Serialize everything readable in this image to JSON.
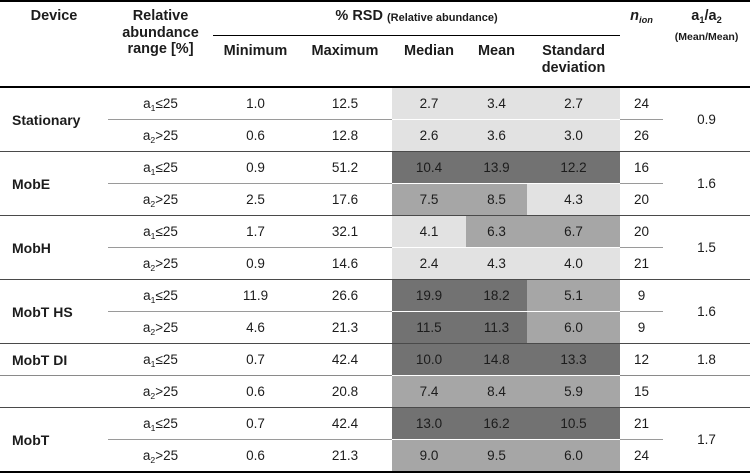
{
  "colors": {
    "shade_light": "#e2e2e2",
    "shade_mid": "#a6a6a6",
    "shade_dark": "#727272",
    "rule_heavy": "#000000",
    "rule_group": "#4a4a4a",
    "rule_inner": "#9a9a9a"
  },
  "header": {
    "device": "Device",
    "range": "Relative\nabundance\nrange [%]",
    "rsd_main": "% RSD",
    "rsd_note": "(Relative abundance)",
    "sub_min": "Minimum",
    "sub_max": "Maximum",
    "sub_median": "Median",
    "sub_mean": "Mean",
    "sub_sd": "Standard\ndeviation",
    "nion": {
      "base": "n",
      "sub": "ion"
    },
    "ratio": {
      "base1": "a",
      "sub1": "1",
      "slash": "/",
      "base2": "a",
      "sub2": "2",
      "note": "(Mean/Mean)"
    }
  },
  "table": {
    "rows": [
      {
        "device": "Stationary",
        "range": {
          "base": "a",
          "sub": "1",
          "rest": "≤25"
        },
        "min": "1.0",
        "max": "12.5",
        "median": "2.7",
        "mean": "3.4",
        "sd": "2.7",
        "n": "24",
        "ratio": "0.9",
        "shades": [
          "light",
          "light",
          "light"
        ]
      },
      {
        "device": "",
        "range": {
          "base": "a",
          "sub": "2",
          "rest": ">25"
        },
        "min": "0.6",
        "max": "12.8",
        "median": "2.6",
        "mean": "3.6",
        "sd": "3.0",
        "n": "26",
        "ratio": "",
        "shades": [
          "light",
          "light",
          "light"
        ]
      },
      {
        "device": "MobE",
        "range": {
          "base": "a",
          "sub": "1",
          "rest": "≤25"
        },
        "min": "0.9",
        "max": "51.2",
        "median": "10.4",
        "mean": "13.9",
        "sd": "12.2",
        "n": "16",
        "ratio": "1.6",
        "shades": [
          "dark",
          "dark",
          "dark"
        ]
      },
      {
        "device": "",
        "range": {
          "base": "a",
          "sub": "2",
          "rest": ">25"
        },
        "min": "2.5",
        "max": "17.6",
        "median": "7.5",
        "mean": "8.5",
        "sd": "4.3",
        "n": "20",
        "ratio": "",
        "shades": [
          "mid",
          "mid",
          "light"
        ]
      },
      {
        "device": "MobH",
        "range": {
          "base": "a",
          "sub": "1",
          "rest": "≤25"
        },
        "min": "1.7",
        "max": "32.1",
        "median": "4.1",
        "mean": "6.3",
        "sd": "6.7",
        "n": "20",
        "ratio": "1.5",
        "shades": [
          "light",
          "mid",
          "mid"
        ]
      },
      {
        "device": "",
        "range": {
          "base": "a",
          "sub": "2",
          "rest": ">25"
        },
        "min": "0.9",
        "max": "14.6",
        "median": "2.4",
        "mean": "4.3",
        "sd": "4.0",
        "n": "21",
        "ratio": "",
        "shades": [
          "light",
          "light",
          "light"
        ]
      },
      {
        "device": "MobT HS",
        "range": {
          "base": "a",
          "sub": "1",
          "rest": "≤25"
        },
        "min": "11.9",
        "max": "26.6",
        "median": "19.9",
        "mean": "18.2",
        "sd": "5.1",
        "n": "9",
        "ratio": "1.6",
        "shades": [
          "dark",
          "dark",
          "mid"
        ]
      },
      {
        "device": "",
        "range": {
          "base": "a",
          "sub": "2",
          "rest": ">25"
        },
        "min": "4.6",
        "max": "21.3",
        "median": "11.5",
        "mean": "11.3",
        "sd": "6.0",
        "n": "9",
        "ratio": "",
        "shades": [
          "dark",
          "dark",
          "mid"
        ]
      },
      {
        "device": "MobT DI",
        "range": {
          "base": "a",
          "sub": "1",
          "rest": "≤25"
        },
        "min": "0.7",
        "max": "42.4",
        "median": "10.0",
        "mean": "14.8",
        "sd": "13.3",
        "n": "12",
        "ratio": "1.8",
        "shades": [
          "dark",
          "dark",
          "dark"
        ]
      },
      {
        "device": "",
        "range": {
          "base": "a",
          "sub": "2",
          "rest": ">25"
        },
        "min": "0.6",
        "max": "20.8",
        "median": "7.4",
        "mean": "8.4",
        "sd": "5.9",
        "n": "15",
        "ratio": "",
        "shades": [
          "mid",
          "mid",
          "mid"
        ]
      },
      {
        "device": "MobT",
        "range": {
          "base": "a",
          "sub": "1",
          "rest": "≤25"
        },
        "min": "0.7",
        "max": "42.4",
        "median": "13.0",
        "mean": "16.2",
        "sd": "10.5",
        "n": "21",
        "ratio": "1.7",
        "shades": [
          "dark",
          "dark",
          "dark"
        ]
      },
      {
        "device": "",
        "range": {
          "base": "a",
          "sub": "2",
          "rest": ">25"
        },
        "min": "0.6",
        "max": "21.3",
        "median": "9.0",
        "mean": "9.5",
        "sd": "6.0",
        "n": "24",
        "ratio": "",
        "shades": [
          "mid",
          "mid",
          "mid"
        ]
      }
    ]
  }
}
